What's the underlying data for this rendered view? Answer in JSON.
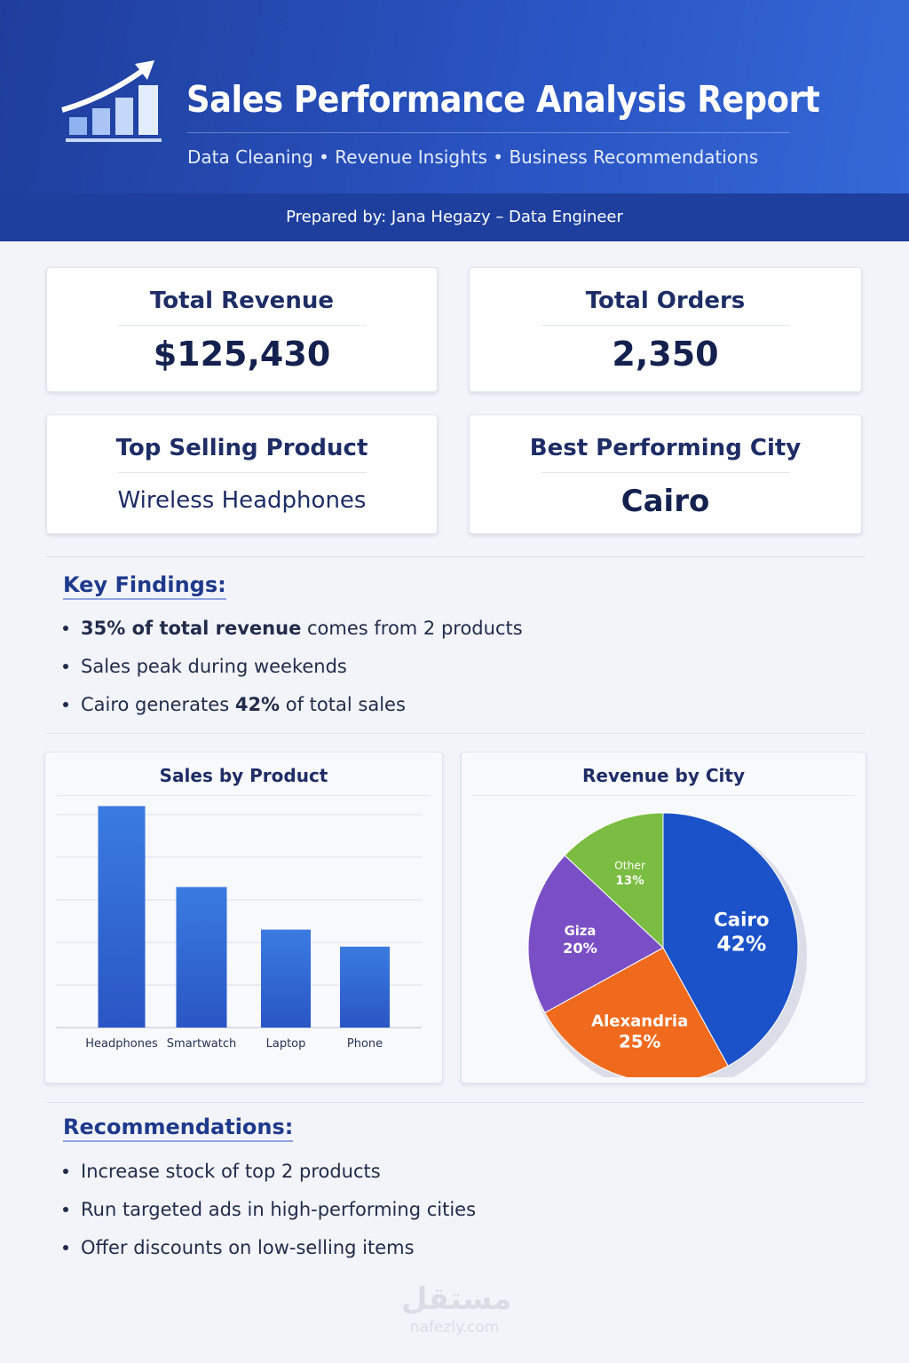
{
  "header": {
    "title": "Sales Performance Analysis Report",
    "subtitle": "Data Cleaning • Revenue Insights • Business Recommendations",
    "prepared_by": "Prepared by: Jana Hegazy – Data Engineer",
    "logo_icon": "chart-growth-icon"
  },
  "kpis": [
    {
      "label": "Total Revenue",
      "value": "$125,430"
    },
    {
      "label": "Total Orders",
      "value": "2,350"
    },
    {
      "label": "Top Selling Product",
      "value": "Wireless Headphones"
    },
    {
      "label": "Best Performing City",
      "value": "Cairo"
    }
  ],
  "findings": {
    "title": "Key Findings:",
    "items": [
      {
        "bold": "35% of total revenue",
        "rest": " comes from 2 products"
      },
      {
        "pre": "Sales peak during weekends"
      },
      {
        "pre": "Cairo generates ",
        "bold": "42%",
        "rest": " of total sales"
      }
    ]
  },
  "recommendations": {
    "title": "Recommendations:",
    "items": [
      "Increase stock of top 2 products",
      "Run targeted ads in high-performing cities",
      "Offer discounts on low-selling items"
    ]
  },
  "chart_data": [
    {
      "type": "bar",
      "title": "Sales by Product",
      "categories": [
        "Headphones",
        "Smartwatch",
        "Laptop",
        "Phone"
      ],
      "values": [
        5.2,
        3.3,
        2.3,
        1.9
      ],
      "ylim": [
        0,
        5.5
      ],
      "grid": true,
      "color": "#2f62d0"
    },
    {
      "type": "pie",
      "title": "Revenue by City",
      "slices": [
        {
          "label": "Cairo",
          "value": 42,
          "display": "42%",
          "color": "#1b52c9"
        },
        {
          "label": "Alexandria",
          "value": 25,
          "display": "25%",
          "color": "#f06a1d"
        },
        {
          "label": "Giza",
          "value": 20,
          "display": "20%",
          "color": "#7a4fc6"
        },
        {
          "label": "Other",
          "value": 13,
          "display": "13%",
          "color": "#7bbd42"
        }
      ]
    }
  ],
  "watermark": {
    "text": "nafezly.com",
    "arabic": "مستقل"
  }
}
